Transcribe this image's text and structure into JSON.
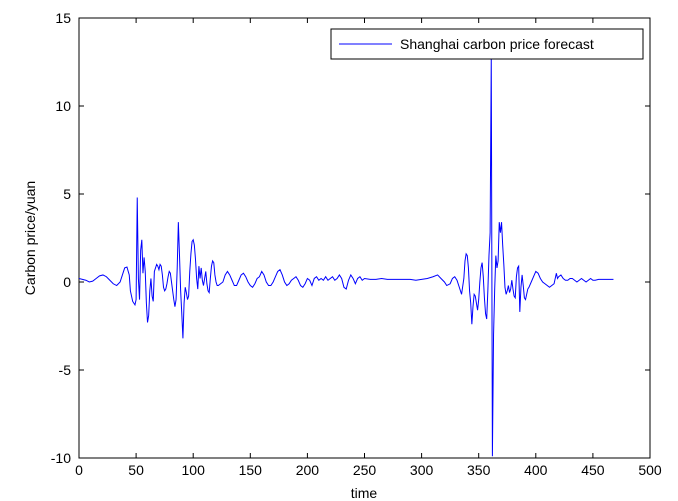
{
  "chart_data": {
    "type": "line",
    "xlabel": "time",
    "ylabel": "Carbon price/yuan",
    "xlim": [
      0,
      500
    ],
    "ylim": [
      -10,
      15
    ],
    "x_ticks": [
      "0",
      "50",
      "100",
      "150",
      "200",
      "250",
      "300",
      "350",
      "400",
      "450",
      "500"
    ],
    "y_ticks": [
      "-10",
      "-5",
      "0",
      "5",
      "10",
      "15"
    ],
    "grid": false,
    "legend_position": "top-right",
    "series": [
      {
        "name": "Shanghai carbon price forecast",
        "color": "#0000ff",
        "points": [
          [
            0,
            0.2
          ],
          [
            3,
            0.15
          ],
          [
            6,
            0.1
          ],
          [
            9,
            0.0
          ],
          [
            12,
            0.05
          ],
          [
            15,
            0.2
          ],
          [
            18,
            0.35
          ],
          [
            21,
            0.4
          ],
          [
            24,
            0.3
          ],
          [
            27,
            0.1
          ],
          [
            30,
            -0.1
          ],
          [
            33,
            -0.2
          ],
          [
            36,
            0.0
          ],
          [
            38,
            0.4
          ],
          [
            40,
            0.8
          ],
          [
            42,
            0.85
          ],
          [
            44,
            0.4
          ],
          [
            45,
            -0.5
          ],
          [
            47,
            -1.1
          ],
          [
            49,
            -1.3
          ],
          [
            50,
            -1.0
          ],
          [
            51,
            4.8
          ],
          [
            52,
            0.2
          ],
          [
            53,
            -1.0
          ],
          [
            54,
            1.8
          ],
          [
            55,
            2.4
          ],
          [
            56,
            0.5
          ],
          [
            57,
            1.4
          ],
          [
            58,
            0.6
          ],
          [
            59,
            -1.2
          ],
          [
            60,
            -2.3
          ],
          [
            61,
            -1.9
          ],
          [
            62,
            -0.5
          ],
          [
            63,
            0.2
          ],
          [
            64,
            -0.8
          ],
          [
            65,
            -1.1
          ],
          [
            66,
            0.6
          ],
          [
            67,
            0.8
          ],
          [
            68,
            1.0
          ],
          [
            69,
            0.9
          ],
          [
            70,
            0.7
          ],
          [
            71,
            1.0
          ],
          [
            72,
            0.9
          ],
          [
            73,
            0.4
          ],
          [
            74,
            -0.3
          ],
          [
            75,
            -0.5
          ],
          [
            76,
            -0.4
          ],
          [
            77,
            -0.1
          ],
          [
            78,
            0.3
          ],
          [
            79,
            0.6
          ],
          [
            80,
            0.5
          ],
          [
            81,
            0.0
          ],
          [
            82,
            -0.5
          ],
          [
            83,
            -1.0
          ],
          [
            84,
            -1.4
          ],
          [
            85,
            -1.0
          ],
          [
            86,
            0.8
          ],
          [
            87,
            3.4
          ],
          [
            88,
            1.5
          ],
          [
            89,
            -0.5
          ],
          [
            90,
            -1.8
          ],
          [
            91,
            -3.2
          ],
          [
            92,
            -1.2
          ],
          [
            93,
            -0.3
          ],
          [
            94,
            -0.6
          ],
          [
            95,
            -1.0
          ],
          [
            96,
            -0.8
          ],
          [
            97,
            0.6
          ],
          [
            98,
            1.6
          ],
          [
            99,
            2.3
          ],
          [
            100,
            2.4
          ],
          [
            101,
            2.1
          ],
          [
            102,
            1.3
          ],
          [
            103,
            0.2
          ],
          [
            104,
            -0.4
          ],
          [
            105,
            0.9
          ],
          [
            106,
            0.2
          ],
          [
            107,
            0.8
          ],
          [
            108,
            0.1
          ],
          [
            109,
            -0.2
          ],
          [
            110,
            0.2
          ],
          [
            111,
            0.6
          ],
          [
            112,
            -0.1
          ],
          [
            113,
            -0.5
          ],
          [
            114,
            -0.6
          ],
          [
            115,
            0.2
          ],
          [
            116,
            0.9
          ],
          [
            117,
            1.2
          ],
          [
            118,
            1.1
          ],
          [
            119,
            0.4
          ],
          [
            120,
            0.0
          ],
          [
            121,
            -0.2
          ],
          [
            122,
            -0.2
          ],
          [
            124,
            -0.1
          ],
          [
            126,
            0.0
          ],
          [
            128,
            0.4
          ],
          [
            130,
            0.6
          ],
          [
            132,
            0.4
          ],
          [
            134,
            0.1
          ],
          [
            136,
            -0.2
          ],
          [
            138,
            -0.2
          ],
          [
            140,
            0.1
          ],
          [
            142,
            0.4
          ],
          [
            144,
            0.5
          ],
          [
            146,
            0.3
          ],
          [
            148,
            0.0
          ],
          [
            150,
            -0.2
          ],
          [
            152,
            -0.3
          ],
          [
            154,
            -0.1
          ],
          [
            156,
            0.2
          ],
          [
            158,
            0.3
          ],
          [
            160,
            0.6
          ],
          [
            162,
            0.4
          ],
          [
            164,
            0.0
          ],
          [
            166,
            -0.2
          ],
          [
            168,
            -0.2
          ],
          [
            170,
            0.0
          ],
          [
            172,
            0.3
          ],
          [
            174,
            0.6
          ],
          [
            176,
            0.7
          ],
          [
            178,
            0.4
          ],
          [
            180,
            0.0
          ],
          [
            182,
            -0.2
          ],
          [
            184,
            -0.1
          ],
          [
            186,
            0.1
          ],
          [
            188,
            0.2
          ],
          [
            190,
            0.3
          ],
          [
            192,
            0.1
          ],
          [
            194,
            -0.2
          ],
          [
            196,
            -0.3
          ],
          [
            198,
            -0.1
          ],
          [
            200,
            0.2
          ],
          [
            202,
            0.1
          ],
          [
            204,
            -0.2
          ],
          [
            206,
            0.2
          ],
          [
            208,
            0.3
          ],
          [
            210,
            0.1
          ],
          [
            212,
            0.2
          ],
          [
            214,
            0.1
          ],
          [
            216,
            0.3
          ],
          [
            218,
            0.1
          ],
          [
            220,
            0.2
          ],
          [
            222,
            0.3
          ],
          [
            224,
            0.1
          ],
          [
            226,
            0.2
          ],
          [
            228,
            0.4
          ],
          [
            230,
            0.2
          ],
          [
            232,
            -0.3
          ],
          [
            234,
            -0.4
          ],
          [
            236,
            0.1
          ],
          [
            238,
            0.4
          ],
          [
            240,
            0.2
          ],
          [
            242,
            -0.1
          ],
          [
            244,
            0.2
          ],
          [
            246,
            0.3
          ],
          [
            248,
            0.1
          ],
          [
            250,
            0.2
          ],
          [
            255,
            0.15
          ],
          [
            260,
            0.15
          ],
          [
            265,
            0.2
          ],
          [
            270,
            0.15
          ],
          [
            275,
            0.15
          ],
          [
            280,
            0.15
          ],
          [
            285,
            0.15
          ],
          [
            290,
            0.15
          ],
          [
            295,
            0.1
          ],
          [
            300,
            0.15
          ],
          [
            305,
            0.2
          ],
          [
            310,
            0.3
          ],
          [
            314,
            0.4
          ],
          [
            317,
            0.2
          ],
          [
            320,
            0.0
          ],
          [
            322,
            -0.2
          ],
          [
            325,
            -0.1
          ],
          [
            327,
            0.2
          ],
          [
            329,
            0.3
          ],
          [
            331,
            0.1
          ],
          [
            333,
            -0.3
          ],
          [
            335,
            -0.7
          ],
          [
            337,
            0.2
          ],
          [
            338,
            1.2
          ],
          [
            339,
            1.6
          ],
          [
            340,
            1.5
          ],
          [
            341,
            0.8
          ],
          [
            342,
            -0.5
          ],
          [
            343,
            -1.2
          ],
          [
            344,
            -2.4
          ],
          [
            345,
            -1.4
          ],
          [
            346,
            -0.7
          ],
          [
            347,
            -0.8
          ],
          [
            348,
            -1.2
          ],
          [
            349,
            -1.6
          ],
          [
            350,
            -1.0
          ],
          [
            351,
            0.0
          ],
          [
            352,
            0.8
          ],
          [
            353,
            1.1
          ],
          [
            354,
            0.3
          ],
          [
            355,
            -0.9
          ],
          [
            356,
            -1.8
          ],
          [
            357,
            -2.1
          ],
          [
            358,
            -0.5
          ],
          [
            359,
            1.5
          ],
          [
            360,
            2.8
          ],
          [
            361,
            12.8
          ],
          [
            362,
            -9.9
          ],
          [
            363,
            -3.0
          ],
          [
            364,
            -0.4
          ],
          [
            365,
            1.5
          ],
          [
            366,
            0.8
          ],
          [
            367,
            1.2
          ],
          [
            368,
            3.4
          ],
          [
            369,
            2.8
          ],
          [
            370,
            3.4
          ],
          [
            371,
            2.1
          ],
          [
            372,
            1.0
          ],
          [
            373,
            -0.3
          ],
          [
            374,
            -0.7
          ],
          [
            375,
            -0.5
          ],
          [
            376,
            -0.2
          ],
          [
            377,
            -0.6
          ],
          [
            378,
            -0.4
          ],
          [
            379,
            0.1
          ],
          [
            380,
            -0.4
          ],
          [
            381,
            -0.8
          ],
          [
            382,
            -0.9
          ],
          [
            383,
            0.3
          ],
          [
            384,
            0.8
          ],
          [
            385,
            0.9
          ],
          [
            386,
            -1.7
          ],
          [
            387,
            -0.3
          ],
          [
            388,
            0.4
          ],
          [
            389,
            -0.2
          ],
          [
            390,
            -0.9
          ],
          [
            391,
            -1.0
          ],
          [
            392,
            -0.7
          ],
          [
            393,
            -0.4
          ],
          [
            394,
            -0.3
          ],
          [
            396,
            0.0
          ],
          [
            398,
            0.3
          ],
          [
            400,
            0.6
          ],
          [
            402,
            0.5
          ],
          [
            404,
            0.2
          ],
          [
            406,
            0.0
          ],
          [
            408,
            -0.1
          ],
          [
            410,
            -0.2
          ],
          [
            412,
            -0.3
          ],
          [
            414,
            -0.2
          ],
          [
            416,
            -0.1
          ],
          [
            418,
            0.5
          ],
          [
            419,
            0.2
          ],
          [
            420,
            0.3
          ],
          [
            422,
            0.4
          ],
          [
            424,
            0.2
          ],
          [
            426,
            0.1
          ],
          [
            428,
            0.1
          ],
          [
            430,
            0.2
          ],
          [
            432,
            0.2
          ],
          [
            434,
            0.1
          ],
          [
            436,
            0.0
          ],
          [
            438,
            0.1
          ],
          [
            440,
            0.2
          ],
          [
            442,
            0.1
          ],
          [
            444,
            0.0
          ],
          [
            446,
            0.1
          ],
          [
            448,
            0.2
          ],
          [
            450,
            0.1
          ],
          [
            452,
            0.1
          ],
          [
            455,
            0.15
          ],
          [
            458,
            0.15
          ],
          [
            462,
            0.15
          ],
          [
            466,
            0.15
          ],
          [
            468,
            0.15
          ]
        ]
      }
    ]
  }
}
